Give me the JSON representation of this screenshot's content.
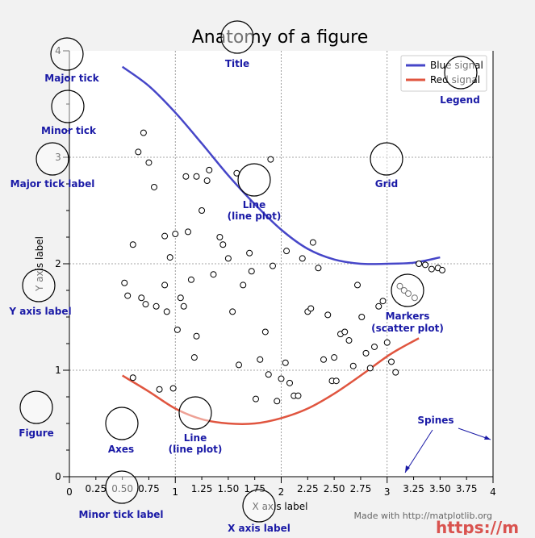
{
  "colors": {
    "background": "#f2f2f2",
    "axes_face": "#ffffff",
    "blue_signal": "#4646c8",
    "red_signal": "#e0553f",
    "annotation": "#1a1aa6",
    "grid": "#888888",
    "footer": "#666666",
    "watermark": "#d9534f"
  },
  "chart_data": {
    "type": "scatter",
    "title": "Anatomy of a figure",
    "xlabel": "X axis label",
    "ylabel": "Y axis label",
    "xlim": [
      0,
      4
    ],
    "ylim": [
      0,
      4
    ],
    "grid": true,
    "legend_position": "top-right",
    "x_major_ticks": [
      0,
      1,
      2,
      3,
      4
    ],
    "x_major_labels": [
      "0",
      "1",
      "2",
      "3",
      "4"
    ],
    "x_minor_ticks": [
      0.25,
      0.5,
      0.75,
      1.25,
      1.5,
      1.75,
      2.25,
      2.5,
      2.75,
      3.25,
      3.5,
      3.75
    ],
    "x_minor_labels": [
      "0.25",
      "0.50",
      "0.75",
      "1.25",
      "1.50",
      "1.75",
      "2.25",
      "2.50",
      "2.75",
      "3.25",
      "3.50",
      "3.75"
    ],
    "y_major_ticks": [
      0,
      1,
      2,
      3,
      4
    ],
    "y_major_labels": [
      "0",
      "1",
      "2",
      "3",
      "4"
    ],
    "y_minor_ticks": [
      0.25,
      0.5,
      0.75,
      1.25,
      1.5,
      1.75,
      2.25,
      2.5,
      2.75,
      3.25,
      3.5,
      3.75
    ],
    "lines": [
      {
        "name": "Blue signal",
        "color": "#4646c8",
        "x": [
          0.5,
          0.75,
          1.0,
          1.25,
          1.5,
          1.75,
          2.0,
          2.25,
          2.5,
          2.75,
          3.0,
          3.25,
          3.5
        ],
        "y": [
          3.85,
          3.67,
          3.42,
          3.13,
          2.83,
          2.56,
          2.32,
          2.14,
          2.04,
          2.0,
          2.0,
          2.01,
          2.06
        ]
      },
      {
        "name": "Red signal",
        "color": "#e0553f",
        "x": [
          0.5,
          0.75,
          1.0,
          1.25,
          1.5,
          1.75,
          2.0,
          2.25,
          2.5,
          2.75,
          3.0,
          3.15,
          3.3
        ],
        "y": [
          0.95,
          0.8,
          0.64,
          0.54,
          0.5,
          0.5,
          0.55,
          0.64,
          0.78,
          0.95,
          1.13,
          1.22,
          1.3
        ]
      }
    ],
    "scatter": {
      "name": "Markers",
      "x": [
        0.52,
        0.55,
        0.6,
        0.65,
        0.68,
        0.7,
        0.72,
        0.75,
        0.8,
        0.82,
        0.85,
        0.9,
        0.92,
        0.95,
        0.98,
        1.02,
        1.05,
        1.08,
        1.12,
        1.15,
        1.18,
        1.2,
        1.25,
        1.3,
        1.32,
        1.36,
        1.42,
        1.45,
        1.5,
        1.54,
        1.6,
        1.64,
        1.7,
        1.72,
        1.76,
        1.8,
        1.85,
        1.88,
        1.92,
        1.96,
        2.0,
        2.04,
        2.08,
        2.12,
        2.16,
        2.2,
        2.25,
        2.28,
        2.3,
        2.35,
        2.4,
        2.44,
        2.48,
        2.5,
        2.52,
        2.56,
        2.6,
        2.64,
        2.68,
        2.72,
        2.76,
        2.8,
        2.84,
        2.88,
        2.92,
        2.96,
        3.0,
        3.04,
        3.08,
        3.12,
        3.16,
        3.2,
        3.26,
        3.3,
        3.36,
        3.42,
        3.48,
        3.52,
        1.0,
        0.9,
        1.1,
        1.2,
        0.6,
        1.58,
        1.9,
        2.05
      ],
      "y": [
        1.82,
        1.7,
        0.93,
        3.05,
        1.68,
        3.23,
        1.62,
        2.95,
        2.72,
        1.6,
        0.82,
        2.26,
        1.55,
        2.06,
        0.83,
        1.38,
        1.68,
        1.6,
        2.3,
        1.85,
        1.12,
        1.32,
        2.5,
        2.78,
        2.88,
        1.9,
        2.25,
        2.18,
        2.05,
        1.55,
        1.05,
        1.8,
        2.1,
        1.93,
        0.73,
        1.1,
        1.36,
        0.96,
        1.98,
        0.71,
        0.92,
        1.07,
        0.88,
        0.76,
        0.76,
        2.05,
        1.55,
        1.58,
        2.2,
        1.96,
        1.1,
        1.52,
        0.9,
        1.12,
        0.9,
        1.34,
        1.36,
        1.28,
        1.04,
        1.8,
        1.5,
        1.16,
        1.02,
        1.22,
        1.6,
        1.65,
        1.26,
        1.08,
        0.98,
        1.79,
        1.75,
        1.72,
        1.68,
        2.0,
        1.99,
        1.95,
        1.96,
        1.94,
        2.28,
        1.8,
        2.82,
        2.82,
        2.18,
        2.85,
        2.98,
        2.12
      ]
    },
    "legend": [
      {
        "label": "Blue signal",
        "color": "#4646c8"
      },
      {
        "label": "Red signal",
        "color": "#e0553f"
      }
    ]
  },
  "annotations": {
    "major_tick": "Major tick",
    "minor_tick": "Minor tick",
    "major_tick_label": "Major tick label",
    "title": "Title",
    "legend": "Legend",
    "grid": "Grid",
    "line_plot": [
      "Line",
      "(line plot)"
    ],
    "y_axis_label": "Y axis label",
    "markers": [
      "Markers",
      "(scatter plot)"
    ],
    "figure": "Figure",
    "axes": "Axes",
    "line_plot_2": [
      "Line",
      "(line plot)"
    ],
    "spines": "Spines",
    "minor_tick_label": "Minor tick label",
    "x_axis_label": "X axis label"
  },
  "footer": "Made with http://matplotlib.org",
  "watermark": "https://m"
}
